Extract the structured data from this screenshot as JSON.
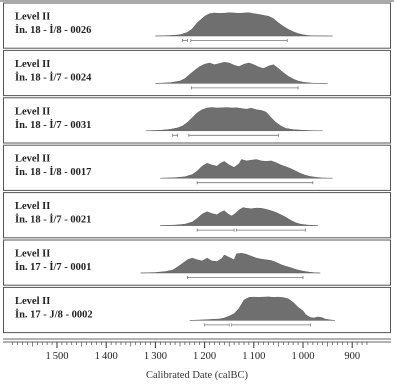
{
  "chart_data": {
    "type": "area",
    "xlabel": "Calibrated Date (calBC)",
    "x_ticks": [
      1500,
      1400,
      1300,
      1200,
      1100,
      1000,
      900
    ],
    "xlim": [
      1590,
      870
    ],
    "x_reversed": true,
    "colors": {
      "fill": "#6f6f6f",
      "frame": "#555555",
      "bracket": "#777777"
    },
    "series": [
      {
        "line1": "Level II",
        "line2": "İn. 18 - İ/8 - 0026",
        "x": [
          1300,
          1270,
          1250,
          1235,
          1225,
          1215,
          1200,
          1190,
          1180,
          1170,
          1160,
          1150,
          1140,
          1130,
          1120,
          1110,
          1100,
          1090,
          1080,
          1070,
          1060,
          1050,
          1040,
          1030,
          1020,
          1010,
          1000,
          990,
          980,
          960,
          940
        ],
        "y": [
          0,
          0.02,
          0.05,
          0.15,
          0.3,
          0.55,
          0.82,
          0.93,
          0.96,
          0.94,
          0.95,
          0.97,
          0.96,
          0.94,
          0.96,
          0.97,
          0.93,
          0.9,
          0.86,
          0.82,
          0.72,
          0.55,
          0.4,
          0.28,
          0.18,
          0.1,
          0.05,
          0.02,
          0.01,
          0.005,
          0
        ],
        "ranges_95": [
          [
            1245,
            1235
          ],
          [
            1228,
            1032
          ]
        ]
      },
      {
        "line1": "Level II",
        "line2": "İn. 18 - İ/7 - 0024",
        "x": [
          1300,
          1270,
          1250,
          1240,
          1230,
          1220,
          1210,
          1200,
          1190,
          1180,
          1170,
          1160,
          1150,
          1140,
          1130,
          1120,
          1110,
          1100,
          1090,
          1080,
          1070,
          1060,
          1050,
          1040,
          1030,
          1020,
          1010,
          1000,
          980,
          950
        ],
        "y": [
          0,
          0.03,
          0.1,
          0.2,
          0.38,
          0.55,
          0.7,
          0.8,
          0.85,
          0.78,
          0.83,
          0.88,
          0.85,
          0.76,
          0.7,
          0.8,
          0.85,
          0.78,
          0.68,
          0.62,
          0.72,
          0.78,
          0.62,
          0.45,
          0.3,
          0.18,
          0.1,
          0.05,
          0.01,
          0
        ],
        "ranges_95": [
          [
            1227,
            1010
          ]
        ]
      },
      {
        "line1": "Level II",
        "line2": "İn. 18 - İ/7 - 0031",
        "x": [
          1320,
          1290,
          1270,
          1255,
          1245,
          1235,
          1225,
          1215,
          1205,
          1195,
          1185,
          1175,
          1165,
          1155,
          1145,
          1135,
          1125,
          1115,
          1105,
          1095,
          1085,
          1075,
          1065,
          1055,
          1045,
          1035,
          1020,
          1000,
          980,
          960
        ],
        "y": [
          0,
          0.02,
          0.06,
          0.12,
          0.2,
          0.35,
          0.55,
          0.75,
          0.88,
          0.95,
          0.97,
          0.95,
          0.96,
          0.97,
          0.95,
          0.96,
          0.93,
          0.9,
          0.94,
          0.88,
          0.85,
          0.78,
          0.55,
          0.35,
          0.2,
          0.1,
          0.05,
          0.02,
          0.005,
          0
        ],
        "ranges_95": [
          [
            1265,
            1255
          ],
          [
            1232,
            1050
          ]
        ]
      },
      {
        "line1": "Level II",
        "line2": "İn. 18 - İ/8 - 0017",
        "x": [
          1290,
          1260,
          1240,
          1225,
          1215,
          1205,
          1195,
          1185,
          1175,
          1168,
          1160,
          1150,
          1140,
          1130,
          1125,
          1115,
          1105,
          1095,
          1085,
          1075,
          1065,
          1055,
          1045,
          1035,
          1025,
          1015,
          1005,
          995,
          985,
          975,
          960,
          940
        ],
        "y": [
          0,
          0.02,
          0.06,
          0.15,
          0.3,
          0.5,
          0.62,
          0.55,
          0.5,
          0.62,
          0.7,
          0.55,
          0.45,
          0.6,
          0.78,
          0.72,
          0.75,
          0.78,
          0.72,
          0.7,
          0.72,
          0.65,
          0.55,
          0.48,
          0.4,
          0.3,
          0.2,
          0.12,
          0.07,
          0.04,
          0.01,
          0
        ],
        "ranges_95": [
          [
            1215,
            980
          ]
        ]
      },
      {
        "line1": "Level II",
        "line2": "İn. 18 - İ/7 - 0021",
        "x": [
          1290,
          1260,
          1240,
          1225,
          1215,
          1205,
          1195,
          1185,
          1175,
          1168,
          1160,
          1152,
          1145,
          1138,
          1130,
          1122,
          1114,
          1105,
          1095,
          1085,
          1075,
          1065,
          1055,
          1045,
          1035,
          1025,
          1015,
          1005,
          990,
          970
        ],
        "y": [
          0,
          0.02,
          0.06,
          0.15,
          0.3,
          0.48,
          0.58,
          0.5,
          0.45,
          0.55,
          0.62,
          0.48,
          0.4,
          0.5,
          0.65,
          0.75,
          0.72,
          0.7,
          0.73,
          0.72,
          0.68,
          0.62,
          0.55,
          0.45,
          0.35,
          0.22,
          0.12,
          0.06,
          0.02,
          0
        ],
        "ranges_95": [
          [
            1215,
            1140
          ],
          [
            1135,
            995
          ]
        ]
      },
      {
        "line1": "Level II",
        "line2": "İn. 17 - İ/7 - 0001",
        "x": [
          1330,
          1300,
          1280,
          1265,
          1255,
          1245,
          1235,
          1225,
          1215,
          1205,
          1195,
          1185,
          1175,
          1165,
          1160,
          1150,
          1140,
          1135,
          1125,
          1115,
          1105,
          1095,
          1085,
          1075,
          1065,
          1055,
          1045,
          1035,
          1025,
          1015,
          1005,
          995,
          985,
          975,
          965
        ],
        "y": [
          0,
          0.02,
          0.06,
          0.12,
          0.25,
          0.4,
          0.55,
          0.62,
          0.55,
          0.5,
          0.62,
          0.5,
          0.48,
          0.6,
          0.75,
          0.65,
          0.55,
          0.8,
          0.82,
          0.78,
          0.7,
          0.62,
          0.58,
          0.55,
          0.52,
          0.45,
          0.35,
          0.28,
          0.22,
          0.15,
          0.1,
          0.06,
          0.03,
          0.01,
          0
        ],
        "ranges_95": [
          [
            1235,
            1000
          ]
        ]
      },
      {
        "line1": "Level II",
        "line2": "İn. 17 - J/8 - 0002",
        "x": [
          1230,
          1205,
          1185,
          1170,
          1160,
          1150,
          1140,
          1130,
          1120,
          1110,
          1100,
          1090,
          1080,
          1070,
          1060,
          1050,
          1040,
          1030,
          1020,
          1010,
          1000,
          995,
          990,
          985,
          978,
          970,
          962,
          955,
          945,
          935
        ],
        "y": [
          0,
          0.02,
          0.04,
          0.06,
          0.1,
          0.18,
          0.28,
          0.5,
          0.85,
          0.96,
          0.97,
          0.96,
          0.97,
          0.98,
          0.96,
          0.97,
          0.95,
          0.9,
          0.75,
          0.55,
          0.4,
          0.25,
          0.18,
          0.12,
          0.1,
          0.14,
          0.12,
          0.06,
          0.02,
          0
        ],
        "ranges_95": [
          [
            1200,
            1150
          ],
          [
            1145,
            985
          ]
        ]
      }
    ]
  }
}
